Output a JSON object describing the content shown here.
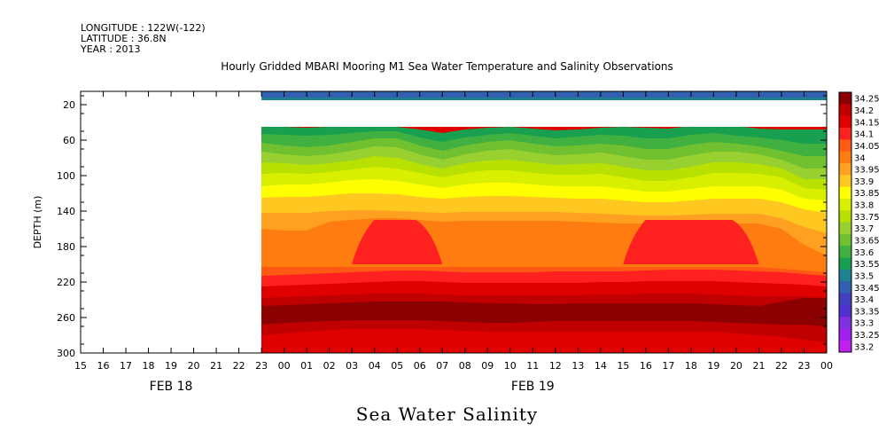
{
  "header": {
    "longitude": "LONGITUDE : 122W(-122)",
    "latitude": "LATITUDE : 36.8N",
    "year": "YEAR : 2013"
  },
  "chart_data": {
    "type": "heatmap",
    "title": "Hourly Gridded MBARI Mooring M1 Sea Water Temperature and Salinity Observations",
    "subtitle": "Sea Water Salinity",
    "ylabel": "DEPTH (m)",
    "xlabel": "",
    "ylim": [
      300,
      5
    ],
    "y_ticks": [
      20,
      60,
      100,
      140,
      180,
      220,
      260,
      300
    ],
    "x_hour_ticks": [
      "15",
      "16",
      "17",
      "18",
      "19",
      "20",
      "21",
      "22",
      "23",
      "00",
      "01",
      "02",
      "03",
      "04",
      "05",
      "06",
      "07",
      "08",
      "09",
      "10",
      "11",
      "12",
      "13",
      "14",
      "15",
      "16",
      "17",
      "18",
      "19",
      "20",
      "21",
      "22",
      "23",
      "00"
    ],
    "day_labels": [
      {
        "label": "FEB 18",
        "hour_index": 4
      },
      {
        "label": "FEB 19",
        "hour_index": 20
      }
    ],
    "data_start_hour_index": 8,
    "data_end_hour_index": 33,
    "surface_band": {
      "depth_top": 5,
      "depth_bottom": 15,
      "value": 33.45
    },
    "colorbar": {
      "levels": [
        "34.25",
        "34.2",
        "34.15",
        "34.1",
        "34.05",
        "34",
        "33.95",
        "33.9",
        "33.85",
        "33.8",
        "33.75",
        "33.7",
        "33.65",
        "33.6",
        "33.55",
        "33.5",
        "33.45",
        "33.4",
        "33.35",
        "33.3",
        "33.25",
        "33.2"
      ],
      "colors": [
        "#8b0000",
        "#c00000",
        "#e00000",
        "#ff2020",
        "#ff5a14",
        "#ff7d10",
        "#ffa020",
        "#ffc820",
        "#ffff00",
        "#d8f000",
        "#b8e000",
        "#98d030",
        "#70c030",
        "#40b040",
        "#18a050",
        "#1e8090",
        "#3060b0",
        "#4040c0",
        "#5030d0",
        "#8030e0",
        "#a020f0",
        "#c020f0"
      ]
    },
    "depth_contours": [
      {
        "value": 33.55,
        "depths": [
          45,
          45,
          46,
          45,
          44,
          43,
          45,
          48,
          52,
          48,
          46,
          45,
          47,
          49,
          48,
          46,
          45,
          46,
          47,
          44,
          42,
          44,
          47,
          48,
          48,
          48
        ]
      },
      {
        "value": 33.6,
        "depths": [
          53,
          54,
          55,
          54,
          52,
          50,
          50,
          57,
          62,
          57,
          54,
          52,
          55,
          58,
          56,
          54,
          55,
          58,
          58,
          54,
          52,
          55,
          57,
          60,
          64,
          64
        ]
      },
      {
        "value": 33.65,
        "depths": [
          63,
          66,
          68,
          66,
          62,
          58,
          58,
          66,
          72,
          66,
          62,
          60,
          64,
          67,
          66,
          64,
          66,
          70,
          70,
          65,
          62,
          64,
          67,
          72,
          78,
          78
        ]
      },
      {
        "value": 33.7,
        "depths": [
          73,
          76,
          78,
          76,
          72,
          67,
          68,
          76,
          82,
          76,
          72,
          70,
          74,
          77,
          76,
          74,
          78,
          82,
          82,
          77,
          73,
          73,
          76,
          82,
          92,
          92
        ]
      },
      {
        "value": 33.75,
        "depths": [
          85,
          86,
          88,
          86,
          83,
          78,
          80,
          87,
          92,
          86,
          83,
          82,
          85,
          88,
          87,
          86,
          90,
          94,
          94,
          90,
          85,
          85,
          87,
          92,
          104,
          104
        ]
      },
      {
        "value": 33.8,
        "depths": [
          98,
          97,
          98,
          96,
          93,
          90,
          92,
          97,
          102,
          97,
          94,
          94,
          97,
          99,
          99,
          98,
          102,
          106,
          106,
          102,
          97,
          97,
          98,
          102,
          114,
          116
        ]
      },
      {
        "value": 33.85,
        "depths": [
          112,
          110,
          110,
          108,
          105,
          104,
          106,
          110,
          114,
          110,
          108,
          108,
          110,
          112,
          112,
          112,
          115,
          118,
          118,
          115,
          112,
          112,
          112,
          116,
          126,
          128
        ]
      },
      {
        "value": 33.9,
        "depths": [
          125,
          124,
          124,
          122,
          120,
          120,
          121,
          124,
          126,
          124,
          123,
          123,
          124,
          125,
          126,
          126,
          128,
          130,
          130,
          128,
          126,
          126,
          126,
          130,
          138,
          142
        ]
      },
      {
        "value": 33.95,
        "depths": [
          142,
          142,
          142,
          140,
          139,
          139,
          140,
          141,
          142,
          141,
          141,
          141,
          141,
          141,
          142,
          143,
          144,
          145,
          145,
          144,
          143,
          143,
          143,
          148,
          158,
          165
        ]
      },
      {
        "value": 34.0,
        "depths": [
          160,
          162,
          162,
          152,
          150,
          148,
          148,
          150,
          152,
          151,
          151,
          151,
          151,
          151,
          152,
          153,
          154,
          154,
          154,
          154,
          154,
          154,
          154,
          160,
          178,
          190
        ]
      },
      {
        "value": 34.05,
        "depths": [
          203,
          203,
          203,
          203,
          203,
          203,
          203,
          203,
          203,
          203,
          203,
          203,
          203,
          203,
          203,
          203,
          203,
          203,
          203,
          203,
          203,
          203,
          203,
          205,
          207,
          209
        ]
      },
      {
        "value": 34.1,
        "depths": [
          213,
          212,
          211,
          210,
          209,
          208,
          207,
          207,
          208,
          209,
          209,
          209,
          209,
          208,
          208,
          208,
          208,
          207,
          206,
          206,
          206,
          207,
          208,
          209,
          211,
          213
        ]
      },
      {
        "value": 34.15,
        "depths": [
          225,
          224,
          223,
          222,
          221,
          220,
          219,
          219,
          220,
          221,
          221,
          221,
          221,
          221,
          221,
          220,
          220,
          219,
          219,
          219,
          219,
          220,
          221,
          222,
          223,
          225
        ]
      },
      {
        "value": 34.2,
        "depths": [
          238,
          237,
          236,
          235,
          234,
          233,
          233,
          233,
          234,
          235,
          235,
          235,
          235,
          235,
          235,
          234,
          234,
          233,
          233,
          233,
          234,
          235,
          236,
          236,
          236,
          238
        ]
      },
      {
        "value": 34.25,
        "depths": [
          247,
          246,
          245,
          244,
          243,
          242,
          242,
          242,
          242,
          243,
          244,
          244,
          245,
          245,
          244,
          244,
          244,
          244,
          244,
          244,
          245,
          246,
          247,
          242,
          238,
          238
        ]
      },
      {
        "value": 34.2,
        "depths": [
          268,
          266,
          265,
          264,
          263,
          263,
          263,
          263,
          264,
          265,
          266,
          266,
          265,
          264,
          264,
          264,
          264,
          264,
          264,
          264,
          265,
          266,
          267,
          268,
          268,
          270
        ]
      },
      {
        "value": 34.15,
        "depths": [
          280,
          278,
          276,
          274,
          273,
          273,
          273,
          273,
          274,
          275,
          276,
          276,
          276,
          276,
          276,
          276,
          276,
          276,
          276,
          276,
          276,
          278,
          280,
          282,
          285,
          288
        ]
      },
      {
        "value": 34.1,
        "depths": [
          300,
          300,
          300,
          300,
          300,
          300,
          300,
          300,
          300,
          300,
          300,
          300,
          300,
          300,
          300,
          300,
          300,
          300,
          300,
          300,
          300,
          300,
          300,
          300,
          300,
          300
        ]
      }
    ],
    "salinity_maximum": {
      "value": 34.1,
      "depth_top": 150,
      "depth_bottom": 200,
      "hour_range": [
        4,
        8
      ],
      "secondary_hour_range": [
        16,
        22
      ]
    }
  }
}
